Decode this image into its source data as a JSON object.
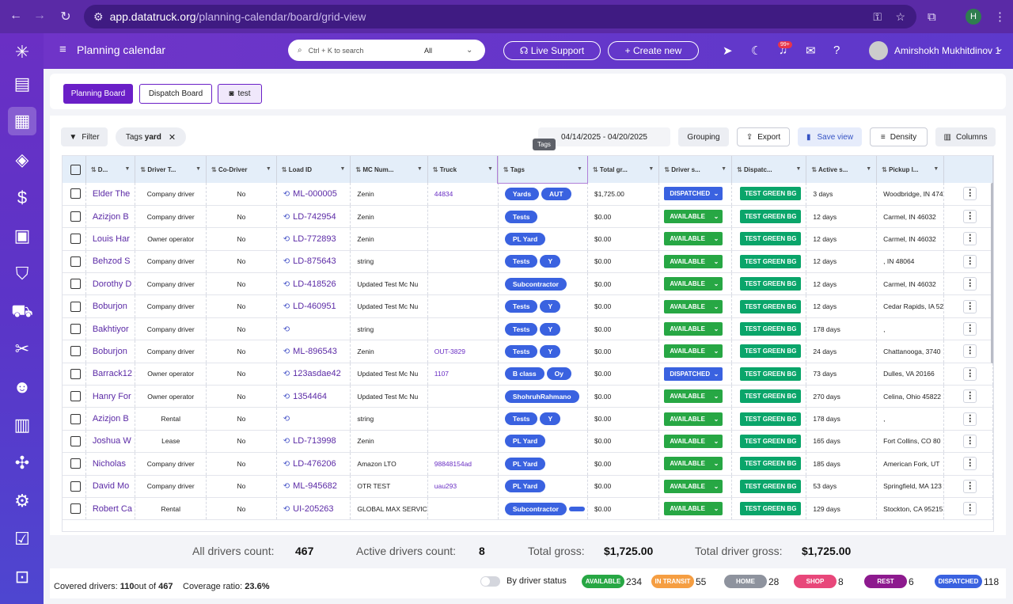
{
  "browser": {
    "url_host": "app.datatruck.org",
    "url_path": "/planning-calendar/board/grid-view",
    "profile_initial": "H"
  },
  "topbar": {
    "title": "Planning calendar",
    "search_placeholder": "Ctrl + K to search",
    "search_scope": "All",
    "live_support": "Live Support",
    "create_new": "+ Create new",
    "notif_badge": "99+",
    "user_name": "Amirshokh Mukhitdinov 1"
  },
  "boards": {
    "planning": "Planning Board",
    "dispatch": "Dispatch Board",
    "test": "test"
  },
  "toolbar": {
    "filter": "Filter",
    "tag_chip_prefix": "Tags",
    "tag_chip_value": "yard",
    "date_range": "04/14/2025 - 04/20/2025",
    "tooltip": "Tags",
    "grouping": "Grouping",
    "export": "Export",
    "save_view": "Save view",
    "density": "Density",
    "columns": "Columns"
  },
  "columns": [
    "D...",
    "Driver T...",
    "Co-Driver",
    "Load ID",
    "MC Num...",
    "Truck",
    "Tags",
    "Total gr...",
    "Driver s...",
    "Dispatc...",
    "Active s...",
    "Pickup l..."
  ],
  "rows": [
    {
      "name": "Elder The",
      "type": "Company driver",
      "co": "No",
      "load": "ML-000005",
      "mc": "Zenin",
      "truck": "44834",
      "tags": [
        "Yards",
        "AUT"
      ],
      "gross": "$1,725.00",
      "status": "DISPATCHED",
      "dispatch": "TEST GREEN BG",
      "active": "3 days",
      "pickup": "Woodbridge, IN 474"
    },
    {
      "name": "Azizjon B",
      "type": "Company driver",
      "co": "No",
      "load": "LD-742954",
      "mc": "Zenin",
      "truck": "",
      "tags": [
        "Tests"
      ],
      "gross": "$0.00",
      "status": "AVAILABLE",
      "dispatch": "TEST GREEN BG",
      "active": "12 days",
      "pickup": "Carmel, IN 46032"
    },
    {
      "name": "Louis Har",
      "type": "Owner operator",
      "co": "No",
      "load": "LD-772893",
      "mc": "Zenin",
      "truck": "",
      "tags": [
        "PL Yard"
      ],
      "gross": "$0.00",
      "status": "AVAILABLE",
      "dispatch": "TEST GREEN BG",
      "active": "12 days",
      "pickup": "Carmel, IN 46032"
    },
    {
      "name": "Behzod S",
      "type": "Company driver",
      "co": "No",
      "load": "LD-875643",
      "mc": "string",
      "truck": "",
      "tags": [
        "Tests",
        "Y"
      ],
      "gross": "$0.00",
      "status": "AVAILABLE",
      "dispatch": "TEST GREEN BG",
      "active": "12 days",
      "pickup": ", IN 48064"
    },
    {
      "name": "Dorothy D",
      "type": "Company driver",
      "co": "No",
      "load": "LD-418526",
      "mc": "Updated Test Mc Nu",
      "truck": "",
      "tags": [
        "Subcontractor"
      ],
      "gross": "$0.00",
      "status": "AVAILABLE",
      "dispatch": "TEST GREEN BG",
      "active": "12 days",
      "pickup": "Carmel, IN 46032"
    },
    {
      "name": "Boburjon",
      "type": "Company driver",
      "co": "No",
      "load": "LD-460951",
      "mc": "Updated Test Mc Nu",
      "truck": "",
      "tags": [
        "Tests",
        "Y"
      ],
      "gross": "$0.00",
      "status": "AVAILABLE",
      "dispatch": "TEST GREEN BG",
      "active": "12 days",
      "pickup": "Cedar Rapids, IA 52"
    },
    {
      "name": "Bakhtiyor",
      "type": "Company driver",
      "co": "No",
      "load": "",
      "mc": "string",
      "truck": "",
      "tags": [
        "Tests",
        "Y"
      ],
      "gross": "$0.00",
      "status": "AVAILABLE",
      "dispatch": "TEST GREEN BG",
      "active": "178 days",
      "pickup": ","
    },
    {
      "name": "Boburjon",
      "type": "Company driver",
      "co": "No",
      "load": "ML-896543",
      "mc": "Zenin",
      "truck": "OUT-3829",
      "tags": [
        "Tests",
        "Y"
      ],
      "gross": "$0.00",
      "status": "AVAILABLE",
      "dispatch": "TEST GREEN BG",
      "active": "24 days",
      "pickup": "Chattanooga, 3740"
    },
    {
      "name": "Barrack12",
      "type": "Owner operator",
      "co": "No",
      "load": "123asdae42",
      "mc": "Updated Test Mc Nu",
      "truck": "1107",
      "tags": [
        "B class",
        "Oy"
      ],
      "gross": "$0.00",
      "status": "DISPATCHED",
      "dispatch": "TEST GREEN BG",
      "active": "73 days",
      "pickup": "Dulles, VA 20166"
    },
    {
      "name": "Hanry For",
      "type": "Owner operator",
      "co": "No",
      "load": "1354464",
      "mc": "Updated Test Mc Nu",
      "truck": "",
      "tags": [
        "ShohruhRahmano"
      ],
      "gross": "$0.00",
      "status": "AVAILABLE",
      "dispatch": "TEST GREEN BG",
      "active": "270 days",
      "pickup": "Celina, Ohio 45822"
    },
    {
      "name": "Azizjon B",
      "type": "Rental",
      "co": "No",
      "load": "",
      "mc": "string",
      "truck": "",
      "tags": [
        "Tests",
        "Y"
      ],
      "gross": "$0.00",
      "status": "AVAILABLE",
      "dispatch": "TEST GREEN BG",
      "active": "178 days",
      "pickup": ","
    },
    {
      "name": "Joshua W",
      "type": "Lease",
      "co": "No",
      "load": "LD-713998",
      "mc": "Zenin",
      "truck": "",
      "tags": [
        "PL Yard"
      ],
      "gross": "$0.00",
      "status": "AVAILABLE",
      "dispatch": "TEST GREEN BG",
      "active": "165 days",
      "pickup": "Fort Collins, CO 80"
    },
    {
      "name": "Nicholas",
      "type": "Company driver",
      "co": "No",
      "load": "LD-476206",
      "mc": "Amazon LTO",
      "truck": "98848154ad",
      "tags": [
        "PL Yard"
      ],
      "gross": "$0.00",
      "status": "AVAILABLE",
      "dispatch": "TEST GREEN BG",
      "active": "185 days",
      "pickup": "American Fork, UT"
    },
    {
      "name": "David Mo",
      "type": "Company driver",
      "co": "No",
      "load": "ML-945682",
      "mc": "OTR TEST",
      "truck": "uau293",
      "tags": [
        "PL Yard"
      ],
      "gross": "$0.00",
      "status": "AVAILABLE",
      "dispatch": "TEST GREEN BG",
      "active": "53 days",
      "pickup": "Springfield, MA 123"
    },
    {
      "name": "Robert Ca",
      "type": "Rental",
      "co": "No",
      "load": "UI-205263",
      "mc": "GLOBAL MAX SERVIC",
      "truck": "",
      "tags": [
        "Subcontractor",
        ""
      ],
      "gross": "$0.00",
      "status": "AVAILABLE",
      "dispatch": "TEST GREEN BG",
      "active": "129 days",
      "pickup": "Stockton, CA 95215"
    }
  ],
  "summary": {
    "all_label": "All drivers count:",
    "all": "467",
    "active_label": "Active drivers count:",
    "active": "8",
    "gross_label": "Total gross:",
    "gross": "$1,725.00",
    "driver_gross_label": "Total driver gross:",
    "driver_gross": "$1,725.00"
  },
  "footer": {
    "covered_label": "Covered drivers:",
    "covered": "110",
    "out_of": "out of",
    "total": "467",
    "ratio_label": "Coverage ratio:",
    "ratio": "23.6%",
    "by_status": "By driver status",
    "statuses": [
      {
        "label": "AVAILABLE",
        "count": "234",
        "color": "#27a744"
      },
      {
        "label": "IN TRANSIT",
        "count": "55",
        "color": "#f59e42"
      },
      {
        "label": "HOME",
        "count": "28",
        "color": "#8e939e"
      },
      {
        "label": "SHOP",
        "count": "8",
        "color": "#e8477a"
      },
      {
        "label": "REST",
        "count": "6",
        "color": "#8d1a8e"
      },
      {
        "label": "DISPATCHED",
        "count": "118",
        "color": "#3a62e0"
      }
    ]
  }
}
